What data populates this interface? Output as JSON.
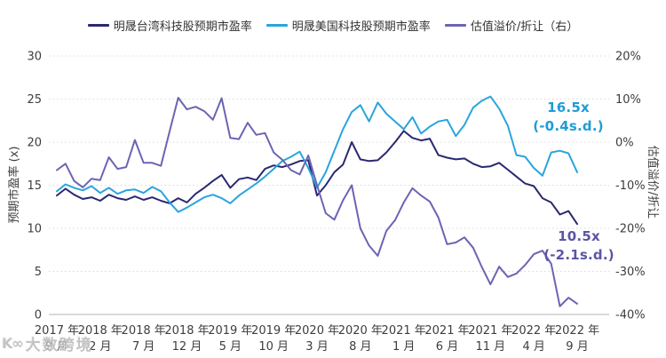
{
  "legend": {
    "items": [
      {
        "label": "明晟台湾科技股预期市盈率",
        "color": "#2a2870"
      },
      {
        "label": "明晟美国科技股预期市盈率",
        "color": "#2aa4dc"
      },
      {
        "label": "估值溢价/折让（右）",
        "color": "#6b64b3"
      }
    ]
  },
  "axes": {
    "left_label": "预期市盈率 (x)",
    "right_label": "估值溢价/折让"
  },
  "annotations": [
    {
      "value": "16.5x",
      "sd": "(-0.4s.d.)",
      "color": "#1e9cd7"
    },
    {
      "value": "10.5x",
      "sd": "(-2.1s.d.)",
      "color": "#5b55a5"
    }
  ],
  "watermark": {
    "logo": "K∞",
    "text": "大数跨境"
  },
  "chart_data": {
    "type": "line",
    "title": "",
    "x_start": "2017-09",
    "x_end": "2022-09",
    "x_step_months": 1,
    "x_ticks": [
      {
        "year": "2017 年",
        "month": "9 月"
      },
      {
        "year": "2018 年",
        "month": "2 月"
      },
      {
        "year": "2018 年",
        "month": "7 月"
      },
      {
        "year": "2018 年",
        "month": "12 月"
      },
      {
        "year": "2019 年",
        "month": "5 月"
      },
      {
        "year": "2019 年",
        "month": "10 月"
      },
      {
        "year": "2020 年",
        "month": "3 月"
      },
      {
        "year": "2020 年",
        "month": "8 月"
      },
      {
        "year": "2021 年",
        "month": "1 月"
      },
      {
        "year": "2021 年",
        "month": "6 月"
      },
      {
        "year": "2021 年",
        "month": "11 月"
      },
      {
        "year": "2022 年",
        "month": "4 月"
      },
      {
        "year": "2022 年",
        "month": "9 月"
      }
    ],
    "left_axis": {
      "label": "预期市盈率 (x)",
      "min": 0,
      "max": 30,
      "ticks": [
        30,
        25,
        20,
        15,
        10,
        5,
        0
      ],
      "tick_labels": [
        "30",
        "25",
        "20",
        "15",
        "10",
        "5",
        "0"
      ]
    },
    "right_axis": {
      "label": "估值溢价/折让",
      "min": -40,
      "max": 20,
      "ticks": [
        20,
        10,
        0,
        -10,
        -20,
        -30,
        -40
      ],
      "tick_labels": [
        "20%",
        "10%",
        "0%",
        "-10%",
        "-20%",
        "-30%",
        "-40%"
      ]
    },
    "grid": "horizontal-dotted",
    "legend_position": "top",
    "series": [
      {
        "name": "明晟台湾科技股预期市盈率",
        "axis": "left",
        "color": "#2a2870",
        "values": [
          13.8,
          14.6,
          13.9,
          13.4,
          13.6,
          13.2,
          13.9,
          13.5,
          13.3,
          13.7,
          13.3,
          13.6,
          13.2,
          12.9,
          13.5,
          13.0,
          14.0,
          14.7,
          15.5,
          16.2,
          14.7,
          15.7,
          15.9,
          15.6,
          16.9,
          17.3,
          17.1,
          17.4,
          17.8,
          17.9,
          13.8,
          15.0,
          16.5,
          17.4,
          20.0,
          18.0,
          17.8,
          17.9,
          18.8,
          20.0,
          21.3,
          20.5,
          20.2,
          20.4,
          18.5,
          18.2,
          18.0,
          18.1,
          17.5,
          17.1,
          17.2,
          17.6,
          16.8,
          16.0,
          15.2,
          14.9,
          13.5,
          13.0,
          11.6,
          12.0,
          10.5
        ]
      },
      {
        "name": "明晟美国科技股预期市盈率",
        "axis": "left",
        "color": "#2aa4dc",
        "values": [
          14.3,
          15.1,
          14.7,
          14.4,
          14.9,
          14.1,
          14.7,
          14.0,
          14.4,
          14.5,
          14.1,
          14.8,
          14.3,
          13.0,
          11.9,
          12.4,
          13.0,
          13.6,
          13.9,
          13.5,
          12.9,
          13.8,
          14.5,
          15.2,
          16.0,
          16.9,
          17.8,
          18.3,
          18.9,
          17.0,
          14.7,
          16.5,
          19.0,
          21.5,
          23.5,
          24.3,
          22.4,
          24.6,
          23.3,
          22.4,
          21.5,
          22.9,
          21.0,
          21.8,
          22.4,
          22.6,
          20.7,
          22.0,
          24.0,
          24.8,
          25.3,
          23.9,
          21.9,
          18.5,
          18.3,
          17.0,
          16.1,
          18.8,
          19.0,
          18.7,
          16.5
        ]
      },
      {
        "name": "估值溢价/折让",
        "axis": "right",
        "color": "#6b64b3",
        "values": [
          -6.5,
          -5.0,
          -9.0,
          -10.5,
          -8.5,
          -8.8,
          -3.5,
          -6.2,
          -5.8,
          0.5,
          -4.8,
          -4.8,
          -5.5,
          2.5,
          10.3,
          7.6,
          8.2,
          7.2,
          5.2,
          10.2,
          1.0,
          0.7,
          4.5,
          1.7,
          2.1,
          -2.4,
          -4.1,
          -6.5,
          -7.5,
          -3.1,
          -10.0,
          -16.5,
          -18.0,
          -13.5,
          -10.0,
          -20.0,
          -24.0,
          -26.4,
          -20.6,
          -18.1,
          -14.0,
          -10.7,
          -12.4,
          -13.8,
          -17.5,
          -23.7,
          -23.3,
          -22.1,
          -24.5,
          -29.0,
          -33.0,
          -28.9,
          -31.3,
          -30.5,
          -28.5,
          -26.0,
          -25.2,
          -28.2,
          -38.1,
          -36.1,
          -37.5
        ]
      }
    ]
  }
}
